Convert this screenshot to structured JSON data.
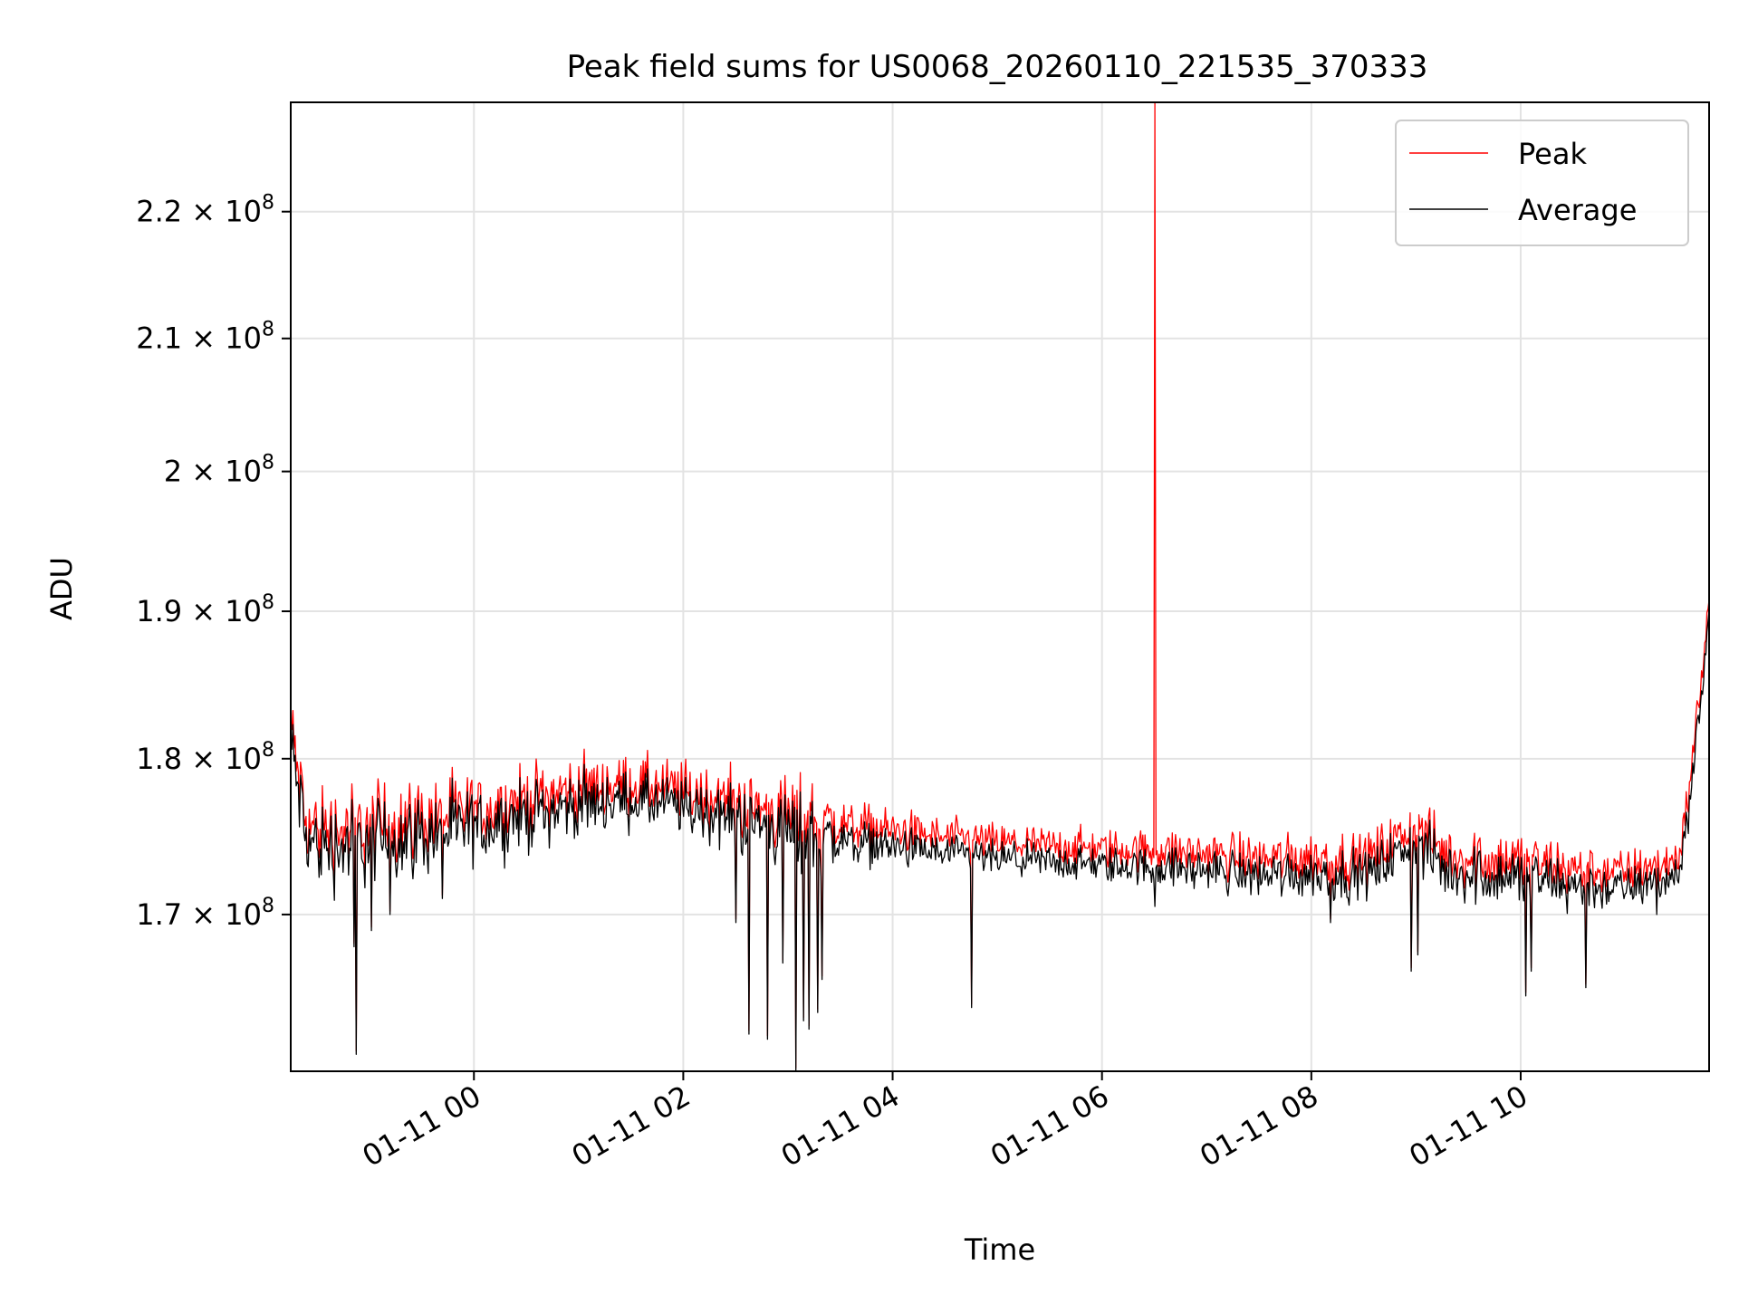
{
  "chart_data": {
    "type": "line",
    "title": "Peak field sums for US0068_20260110_221535_370333",
    "xlabel": "Time",
    "ylabel": "ADU",
    "x_unit": "hours since 2026-01-11 00:00",
    "xlim": [
      -1.75,
      11.8
    ],
    "ylim": [
      160500000,
      229000000
    ],
    "y_scale": "log",
    "grid": true,
    "legend_position": "top-right",
    "x_ticks": [
      {
        "value": 0,
        "label": "01-11 00"
      },
      {
        "value": 2,
        "label": "01-11 02"
      },
      {
        "value": 4,
        "label": "01-11 04"
      },
      {
        "value": 6,
        "label": "01-11 06"
      },
      {
        "value": 8,
        "label": "01-11 08"
      },
      {
        "value": 10,
        "label": "01-11 10"
      }
    ],
    "y_ticks": [
      {
        "value": 170000000,
        "mantissa": "1.7",
        "exponent": "8"
      },
      {
        "value": 180000000,
        "mantissa": "1.8",
        "exponent": "8"
      },
      {
        "value": 190000000,
        "mantissa": "1.9",
        "exponent": "8"
      },
      {
        "value": 200000000,
        "mantissa": "2",
        "exponent": "8"
      },
      {
        "value": 210000000,
        "mantissa": "2.1",
        "exponent": "8"
      },
      {
        "value": 220000000,
        "mantissa": "2.2",
        "exponent": "8"
      }
    ],
    "times_symbol": "×",
    "tick_base": "10",
    "series": [
      {
        "name": "Peak",
        "color": "#ff0000"
      },
      {
        "name": "Average",
        "color": "#000000"
      }
    ],
    "peak_offset": 700000,
    "baseline": [
      [
        -1.75,
        181000000
      ],
      [
        -1.6,
        174500000
      ],
      [
        -1.3,
        174300000
      ],
      [
        -1.0,
        174600000
      ],
      [
        -0.7,
        174800000
      ],
      [
        -0.4,
        175100000
      ],
      [
        0.0,
        175500000
      ],
      [
        0.5,
        176300000
      ],
      [
        1.0,
        177000000
      ],
      [
        1.5,
        177300000
      ],
      [
        2.0,
        176800000
      ],
      [
        2.5,
        176100000
      ],
      [
        3.0,
        175200000
      ],
      [
        3.5,
        174700000
      ],
      [
        4.0,
        174300000
      ],
      [
        4.5,
        173800000
      ],
      [
        5.0,
        173500000
      ],
      [
        5.5,
        173300000
      ],
      [
        6.0,
        173100000
      ],
      [
        6.5,
        173000000
      ],
      [
        7.0,
        172800000
      ],
      [
        7.5,
        172500000
      ],
      [
        8.0,
        172600000
      ],
      [
        8.5,
        172400000
      ],
      [
        9.0,
        174500000
      ],
      [
        9.3,
        172700000
      ],
      [
        10.0,
        172300000
      ],
      [
        10.5,
        171800000
      ],
      [
        11.0,
        171600000
      ],
      [
        11.5,
        172400000
      ],
      [
        11.55,
        174000000
      ],
      [
        11.65,
        179500000
      ],
      [
        11.8,
        189500000
      ]
    ],
    "noise": [
      [
        -1.75,
        1400000
      ],
      [
        -1.3,
        1500000
      ],
      [
        -1.0,
        1400000
      ],
      [
        0.0,
        1200000
      ],
      [
        1.5,
        900000
      ],
      [
        2.6,
        1100000
      ],
      [
        3.2,
        1400000
      ],
      [
        3.6,
        700000
      ],
      [
        5.0,
        550000
      ],
      [
        6.5,
        600000
      ],
      [
        8.0,
        800000
      ],
      [
        8.5,
        750000
      ],
      [
        9.0,
        900000
      ],
      [
        10.0,
        1000000
      ],
      [
        11.0,
        650000
      ],
      [
        11.8,
        700000
      ]
    ],
    "dips": [
      {
        "x": -1.12,
        "y": 161500000
      },
      {
        "x": -1.15,
        "y": 168000000
      },
      {
        "x": -0.98,
        "y": 169000000
      },
      {
        "x": -0.8,
        "y": 170000000
      },
      {
        "x": -0.3,
        "y": 171000000
      },
      {
        "x": 2.5,
        "y": 169500000
      },
      {
        "x": 2.63,
        "y": 162700000
      },
      {
        "x": 2.8,
        "y": 162400000
      },
      {
        "x": 2.95,
        "y": 167000000
      },
      {
        "x": 3.08,
        "y": 160500000
      },
      {
        "x": 3.15,
        "y": 163500000
      },
      {
        "x": 3.2,
        "y": 163000000
      },
      {
        "x": 3.28,
        "y": 164000000
      },
      {
        "x": 3.33,
        "y": 166000000
      },
      {
        "x": 4.75,
        "y": 164300000
      },
      {
        "x": 6.5,
        "y": 170500000
      },
      {
        "x": 8.18,
        "y": 169500000
      },
      {
        "x": 8.95,
        "y": 166500000
      },
      {
        "x": 9.02,
        "y": 167500000
      },
      {
        "x": 10.05,
        "y": 165000000
      },
      {
        "x": 10.1,
        "y": 166500000
      },
      {
        "x": 10.62,
        "y": 165500000
      },
      {
        "x": 11.3,
        "y": 170000000
      }
    ],
    "spikes": [
      {
        "x": 6.51,
        "y": 229000000,
        "series": "Peak"
      }
    ]
  }
}
